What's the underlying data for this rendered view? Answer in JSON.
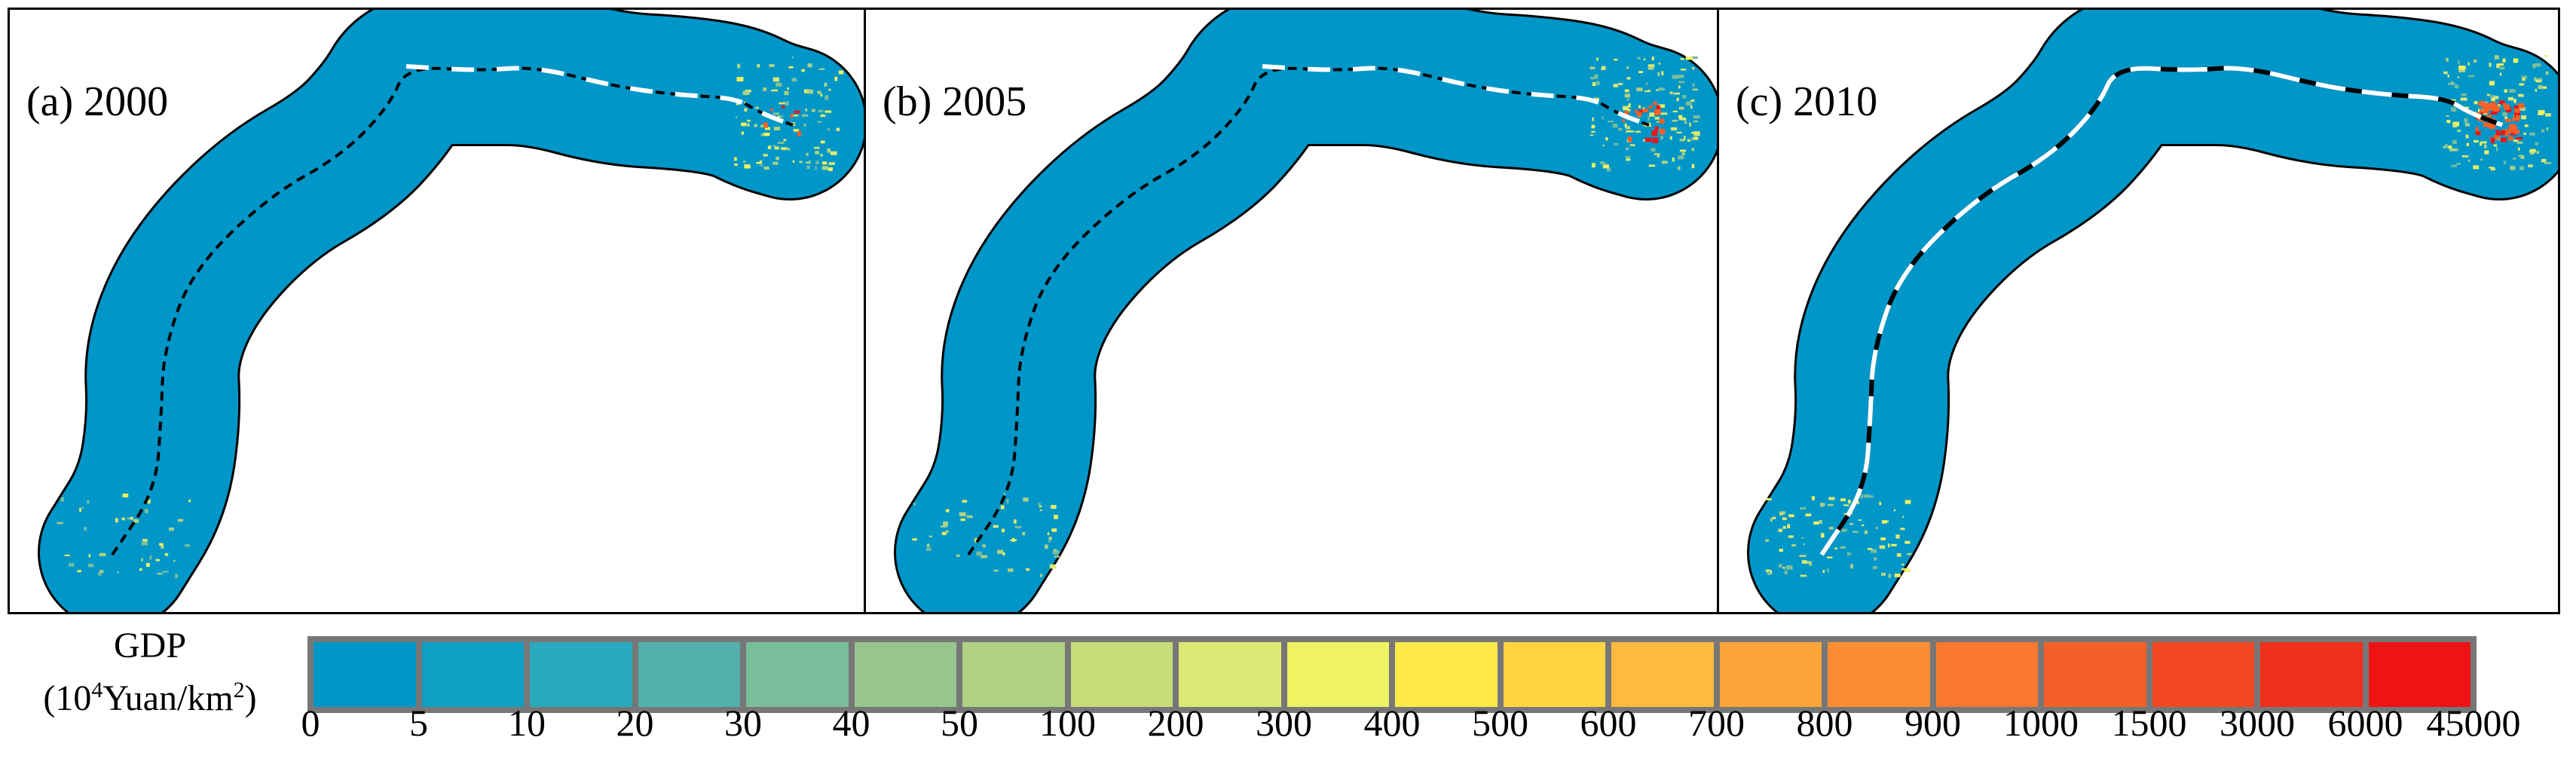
{
  "panels": [
    {
      "label": "(a) 2000"
    },
    {
      "label": "(b) 2005"
    },
    {
      "label": "(c) 2010"
    }
  ],
  "legend": {
    "title_line1": "GDP",
    "title_unit_a": "(10",
    "title_unit_sup1": "4",
    "title_unit_b": "Yuan/km",
    "title_unit_sup2": "2",
    "title_unit_c": ")",
    "ticks": [
      "0",
      "5",
      "10",
      "20",
      "30",
      "40",
      "50",
      "100",
      "200",
      "300",
      "400",
      "500",
      "600",
      "700",
      "800",
      "900",
      "1000",
      "1500",
      "3000",
      "6000",
      "45000"
    ],
    "colors": [
      "#0096c8",
      "#0ea0c4",
      "#28a9bc",
      "#52b2ab",
      "#7abd9b",
      "#96c68e",
      "#aed184",
      "#c6dc79",
      "#dce874",
      "#eff261",
      "#fde84a",
      "#fed441",
      "#fdba3e",
      "#fca53a",
      "#fb8e34",
      "#f8782e",
      "#f66028",
      "#f34822",
      "#f0301c",
      "#ee1414"
    ],
    "map_colors": {
      "base": "#0096c8",
      "road": "#000000",
      "upgraded_road": "#ffffff",
      "hotspot": "#f66028"
    }
  }
}
